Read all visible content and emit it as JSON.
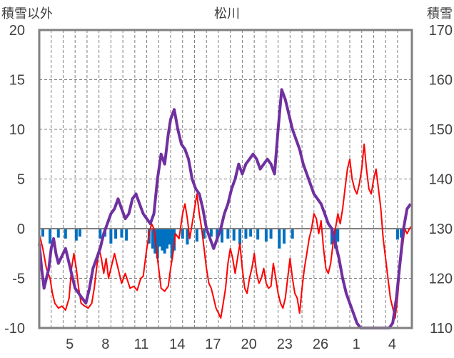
{
  "chart_data": {
    "type": "line",
    "title": "松川",
    "y_left_label": "積雪以外",
    "y_right_label": "積雪",
    "y_left_lim": [
      -10,
      20
    ],
    "y_right_lim": [
      110,
      170
    ],
    "y_left_ticks": [
      -10,
      -5,
      0,
      5,
      10,
      15,
      20
    ],
    "y_right_ticks": [
      110,
      120,
      130,
      140,
      150,
      160,
      170
    ],
    "x_tick_labels": [
      {
        "label": "5",
        "day": 2
      },
      {
        "label": "8",
        "day": 5
      },
      {
        "label": "11",
        "day": 8
      },
      {
        "label": "14",
        "day": 11
      },
      {
        "label": "17",
        "day": 14
      },
      {
        "label": "20",
        "day": 17
      },
      {
        "label": "23",
        "day": 20
      },
      {
        "label": "26",
        "day": 23
      },
      {
        "label": "1",
        "day": 26
      },
      {
        "label": "4",
        "day": 29
      }
    ],
    "x_range_days": [
      0,
      30.2
    ],
    "grid": {
      "vertical_dashed": true,
      "horizontal_dashed": true
    },
    "colors": {
      "temperature": "#ff0000",
      "snow_depth": "#7030a0",
      "precipitation": "#0070c0",
      "zero_line": "#808080",
      "frame": "#808080",
      "grid": "#7f7f7f",
      "text": "#404040"
    },
    "series": [
      {
        "axis": "left",
        "color": "#ff0000",
        "points": [
          [
            0,
            -0.5
          ],
          [
            0.3,
            -2
          ],
          [
            0.6,
            -4
          ],
          [
            0.9,
            -5
          ],
          [
            1.1,
            -6.5
          ],
          [
            1.3,
            -7.5
          ],
          [
            1.6,
            -8
          ],
          [
            1.9,
            -7.8
          ],
          [
            2.2,
            -8.2
          ],
          [
            2.5,
            -7
          ],
          [
            2.7,
            -4
          ],
          [
            2.9,
            -2.5
          ],
          [
            3.1,
            -4
          ],
          [
            3.3,
            -6
          ],
          [
            3.5,
            -7.5
          ],
          [
            3.8,
            -7.8
          ],
          [
            4.1,
            -8
          ],
          [
            4.4,
            -7.5
          ],
          [
            4.6,
            -6
          ],
          [
            4.8,
            -4
          ],
          [
            5.0,
            -2
          ],
          [
            5.2,
            -3
          ],
          [
            5.4,
            -4.5
          ],
          [
            5.6,
            -3
          ],
          [
            5.8,
            -5
          ],
          [
            6.0,
            -4
          ],
          [
            6.3,
            -2.5
          ],
          [
            6.6,
            -4
          ],
          [
            6.9,
            -5.5
          ],
          [
            7.2,
            -4.5
          ],
          [
            7.6,
            -6
          ],
          [
            7.9,
            -5.8
          ],
          [
            8.2,
            -6.2
          ],
          [
            8.5,
            -5
          ],
          [
            8.7,
            -4.8
          ],
          [
            9.0,
            -2
          ],
          [
            9.2,
            -0.5
          ],
          [
            9.4,
            0.5
          ],
          [
            9.6,
            0
          ],
          [
            9.8,
            -2
          ],
          [
            10.0,
            -4
          ],
          [
            10.2,
            -6
          ],
          [
            10.5,
            -6.3
          ],
          [
            10.8,
            -5.8
          ],
          [
            11.0,
            -4
          ],
          [
            11.2,
            -2.5
          ],
          [
            11.4,
            -0.5
          ],
          [
            11.7,
            -1
          ],
          [
            12.0,
            1.5
          ],
          [
            12.2,
            2.5
          ],
          [
            12.4,
            1
          ],
          [
            12.6,
            -1
          ],
          [
            12.8,
            0.5
          ],
          [
            13.0,
            2
          ],
          [
            13.2,
            3.5
          ],
          [
            13.4,
            1.5
          ],
          [
            13.6,
            0
          ],
          [
            13.8,
            -2
          ],
          [
            14.0,
            -4
          ],
          [
            14.2,
            -5.5
          ],
          [
            14.4,
            -6
          ],
          [
            14.6,
            -7
          ],
          [
            14.8,
            -8
          ],
          [
            15.0,
            -8.5
          ],
          [
            15.2,
            -9
          ],
          [
            15.4,
            -7.5
          ],
          [
            15.6,
            -6
          ],
          [
            15.8,
            -3.5
          ],
          [
            16.0,
            -2
          ],
          [
            16.2,
            -3
          ],
          [
            16.4,
            -4.5
          ],
          [
            16.6,
            -3
          ],
          [
            16.8,
            -1.5
          ],
          [
            17.0,
            -4
          ],
          [
            17.2,
            -6
          ],
          [
            17.4,
            -6.5
          ],
          [
            17.6,
            -5
          ],
          [
            17.8,
            -4
          ],
          [
            18.0,
            -2.5
          ],
          [
            18.2,
            -4.5
          ],
          [
            18.4,
            -5.5
          ],
          [
            18.6,
            -5
          ],
          [
            18.8,
            -4
          ],
          [
            19.0,
            -5.5
          ],
          [
            19.2,
            -6
          ],
          [
            19.4,
            -5.8
          ],
          [
            19.6,
            -3.5
          ],
          [
            19.8,
            -5
          ],
          [
            20.0,
            -6.5
          ],
          [
            20.2,
            -7.5
          ],
          [
            20.4,
            -8
          ],
          [
            20.6,
            -7
          ],
          [
            20.8,
            -5
          ],
          [
            21.0,
            -3
          ],
          [
            21.2,
            -5
          ],
          [
            21.4,
            -6.5
          ],
          [
            21.6,
            -7
          ],
          [
            21.8,
            -8.5
          ],
          [
            22.0,
            -6
          ],
          [
            22.2,
            -4
          ],
          [
            22.4,
            -2.5
          ],
          [
            22.6,
            -1
          ],
          [
            22.8,
            0
          ],
          [
            23.0,
            1.5
          ],
          [
            23.2,
            1
          ],
          [
            23.4,
            -0.5
          ],
          [
            23.6,
            0.8
          ],
          [
            23.8,
            -2
          ],
          [
            24.0,
            -4
          ],
          [
            24.2,
            -4.5
          ],
          [
            24.4,
            -3.5
          ],
          [
            24.6,
            -1.5
          ],
          [
            24.8,
            0
          ],
          [
            25.0,
            1.5
          ],
          [
            25.2,
            0.5
          ],
          [
            25.4,
            2
          ],
          [
            25.6,
            4
          ],
          [
            25.8,
            6
          ],
          [
            26.0,
            7
          ],
          [
            26.2,
            5
          ],
          [
            26.4,
            4
          ],
          [
            26.6,
            3.5
          ],
          [
            26.8,
            4.5
          ],
          [
            27.0,
            6
          ],
          [
            27.2,
            8.5
          ],
          [
            27.4,
            6
          ],
          [
            27.6,
            4
          ],
          [
            27.8,
            3.5
          ],
          [
            28.0,
            5
          ],
          [
            28.2,
            6
          ],
          [
            28.4,
            4
          ],
          [
            28.6,
            2
          ],
          [
            28.8,
            -1
          ],
          [
            29.0,
            -3
          ],
          [
            29.2,
            -5
          ],
          [
            29.4,
            -7
          ],
          [
            29.6,
            -8
          ],
          [
            29.8,
            -9
          ],
          [
            30.0,
            -7
          ],
          [
            30.2,
            -4
          ],
          [
            30.4,
            -2
          ],
          [
            30.6,
            0
          ],
          [
            30.8,
            -0.5
          ],
          [
            31.0,
            0
          ],
          [
            31.2,
            0.3
          ]
        ]
      },
      {
        "axis": "right",
        "color": "#7030a0",
        "points": [
          [
            0,
            127
          ],
          [
            0.2,
            122
          ],
          [
            0.4,
            118
          ],
          [
            0.6,
            120
          ],
          [
            0.8,
            122
          ],
          [
            1.0,
            126
          ],
          [
            1.2,
            128
          ],
          [
            1.4,
            125
          ],
          [
            1.6,
            123
          ],
          [
            1.8,
            124
          ],
          [
            2.0,
            125
          ],
          [
            2.2,
            126
          ],
          [
            2.4,
            124
          ],
          [
            2.6,
            122
          ],
          [
            2.8,
            120
          ],
          [
            3.0,
            118
          ],
          [
            3.3,
            117
          ],
          [
            3.6,
            116
          ],
          [
            3.9,
            115
          ],
          [
            4.2,
            118
          ],
          [
            4.5,
            122
          ],
          [
            4.8,
            124
          ],
          [
            5.1,
            126
          ],
          [
            5.4,
            129
          ],
          [
            5.7,
            131
          ],
          [
            6.0,
            133
          ],
          [
            6.3,
            134
          ],
          [
            6.6,
            136
          ],
          [
            6.9,
            134
          ],
          [
            7.2,
            132
          ],
          [
            7.5,
            133
          ],
          [
            7.8,
            136
          ],
          [
            8.1,
            137
          ],
          [
            8.4,
            135
          ],
          [
            8.7,
            133
          ],
          [
            9.0,
            132
          ],
          [
            9.3,
            131
          ],
          [
            9.6,
            133
          ],
          [
            9.9,
            140
          ],
          [
            10.2,
            145
          ],
          [
            10.5,
            143
          ],
          [
            10.8,
            149
          ],
          [
            11.0,
            152
          ],
          [
            11.3,
            154
          ],
          [
            11.6,
            150
          ],
          [
            11.9,
            147
          ],
          [
            12.2,
            146
          ],
          [
            12.5,
            144
          ],
          [
            12.8,
            140
          ],
          [
            13.1,
            138
          ],
          [
            13.4,
            137
          ],
          [
            13.7,
            134
          ],
          [
            14.0,
            130
          ],
          [
            14.3,
            128
          ],
          [
            14.6,
            126
          ],
          [
            14.9,
            128
          ],
          [
            15.2,
            130
          ],
          [
            15.5,
            133
          ],
          [
            15.8,
            135
          ],
          [
            16.1,
            138
          ],
          [
            16.4,
            140
          ],
          [
            16.7,
            143
          ],
          [
            17.0,
            141
          ],
          [
            17.3,
            143
          ],
          [
            17.6,
            144
          ],
          [
            17.9,
            145
          ],
          [
            18.2,
            144
          ],
          [
            18.5,
            142
          ],
          [
            18.8,
            143
          ],
          [
            19.1,
            144
          ],
          [
            19.4,
            143
          ],
          [
            19.7,
            141
          ],
          [
            20.0,
            150
          ],
          [
            20.3,
            158
          ],
          [
            20.6,
            156
          ],
          [
            20.9,
            153
          ],
          [
            21.2,
            150
          ],
          [
            21.5,
            148
          ],
          [
            21.8,
            146
          ],
          [
            22.1,
            143
          ],
          [
            22.4,
            141
          ],
          [
            22.7,
            139
          ],
          [
            23.0,
            137
          ],
          [
            23.3,
            136
          ],
          [
            23.6,
            135
          ],
          [
            23.9,
            133
          ],
          [
            24.2,
            131
          ],
          [
            24.5,
            130
          ],
          [
            24.8,
            127
          ],
          [
            25.1,
            124
          ],
          [
            25.4,
            120
          ],
          [
            25.7,
            117
          ],
          [
            26.0,
            115
          ],
          [
            26.3,
            113
          ],
          [
            26.6,
            111
          ],
          [
            26.9,
            110
          ],
          [
            27.2,
            110
          ],
          [
            27.5,
            110
          ],
          [
            27.8,
            110
          ],
          [
            28.1,
            110
          ],
          [
            28.4,
            110
          ],
          [
            28.7,
            110
          ],
          [
            29.0,
            110
          ],
          [
            29.3,
            110
          ],
          [
            29.6,
            111
          ],
          [
            29.9,
            116
          ],
          [
            30.2,
            123
          ],
          [
            30.5,
            130
          ],
          [
            30.8,
            134
          ],
          [
            31.1,
            135
          ]
        ]
      },
      {
        "axis": "left",
        "type": "bar",
        "color": "#0070c0",
        "points": [
          [
            0.3,
            -0.8
          ],
          [
            0.9,
            -1.5
          ],
          [
            1.6,
            -0.9
          ],
          [
            2.2,
            -1
          ],
          [
            3.1,
            -1.2
          ],
          [
            3.4,
            -0.8
          ],
          [
            5.1,
            -1
          ],
          [
            5.5,
            -0.8
          ],
          [
            6.0,
            -1.5
          ],
          [
            6.4,
            -1
          ],
          [
            6.9,
            -0.9
          ],
          [
            7.3,
            -1.2
          ],
          [
            9.2,
            -1.5
          ],
          [
            9.5,
            -2
          ],
          [
            9.7,
            -2.5
          ],
          [
            9.9,
            -3
          ],
          [
            10.1,
            -1.8
          ],
          [
            10.3,
            -2.2
          ],
          [
            10.5,
            -2.5
          ],
          [
            10.7,
            -2
          ],
          [
            10.9,
            -1.6
          ],
          [
            11.1,
            -3
          ],
          [
            11.3,
            -2.2
          ],
          [
            12.0,
            -1
          ],
          [
            12.4,
            -1.6
          ],
          [
            13.2,
            -1.3
          ],
          [
            13.8,
            -1
          ],
          [
            14.4,
            -0.8
          ],
          [
            14.9,
            -1.1
          ],
          [
            15.3,
            -1.4
          ],
          [
            15.8,
            -1
          ],
          [
            16.3,
            -1.2
          ],
          [
            16.8,
            -1.6
          ],
          [
            17.3,
            -1
          ],
          [
            17.7,
            -0.8
          ],
          [
            18.3,
            -1.1
          ],
          [
            19.0,
            -1.3
          ],
          [
            19.4,
            -1
          ],
          [
            20.1,
            -2
          ],
          [
            20.5,
            -1.5
          ],
          [
            21.2,
            -1
          ],
          [
            24.5,
            -1.6
          ],
          [
            24.8,
            -2
          ],
          [
            25.0,
            -1.3
          ],
          [
            30.0,
            -1.1
          ],
          [
            30.3,
            -0.9
          ]
        ]
      }
    ]
  }
}
